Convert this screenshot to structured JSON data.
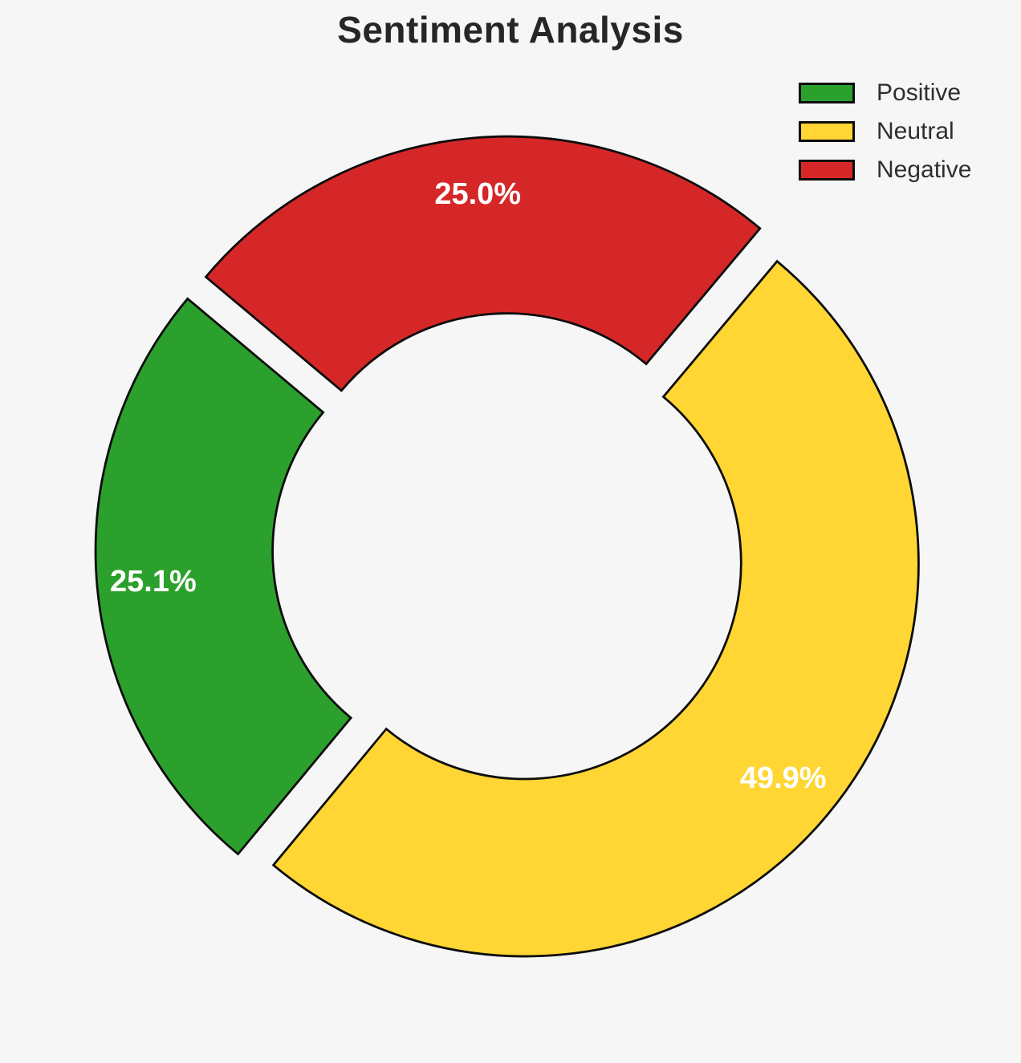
{
  "page": {
    "background_color": "#f6f6f6"
  },
  "chart_data": {
    "type": "pie",
    "subtype": "donut-exploded",
    "title": "Sentiment Analysis",
    "title_color": "#262626",
    "categories": [
      "Positive",
      "Neutral",
      "Negative"
    ],
    "values": [
      25.1,
      49.9,
      25.0
    ],
    "value_labels": [
      "25.1%",
      "49.9%",
      "25.0%"
    ],
    "colors": [
      "#2ca02c",
      "#ffd633",
      "#d62728"
    ],
    "edge_color": "#0d0d0d",
    "pct_label_color": "#ffffff",
    "legend": {
      "position": "upper-right",
      "entries": [
        "Positive",
        "Neutral",
        "Negative"
      ],
      "text_color": "#2e2e2e"
    },
    "layout_hints": {
      "start_angle_deg": 140,
      "direction": "counterclockwise",
      "explode_fraction": 0.051,
      "inner_radius_ratio": 0.55,
      "pct_label_distance": 0.857,
      "grid": false
    }
  }
}
